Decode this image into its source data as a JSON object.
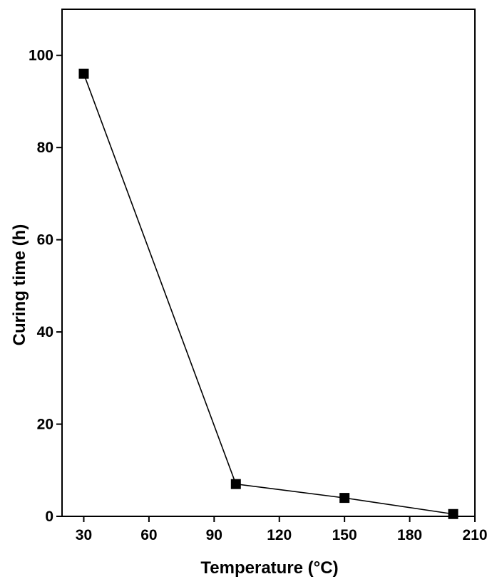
{
  "chart_data": {
    "type": "line",
    "title": "",
    "xlabel": "Temperature (°C)",
    "ylabel": "Curing time (h)",
    "xlim": [
      20,
      210
    ],
    "ylim": [
      0,
      110
    ],
    "xticks": [
      "30",
      "60",
      "90",
      "120",
      "150",
      "180",
      "210"
    ],
    "yticks": [
      "0",
      "20",
      "40",
      "60",
      "80",
      "100"
    ],
    "grid": false,
    "series": [
      {
        "marker": "square",
        "color": "#000000",
        "x": [
          30,
          100,
          150,
          200
        ],
        "y": [
          96,
          7,
          4,
          0.5
        ]
      }
    ]
  }
}
